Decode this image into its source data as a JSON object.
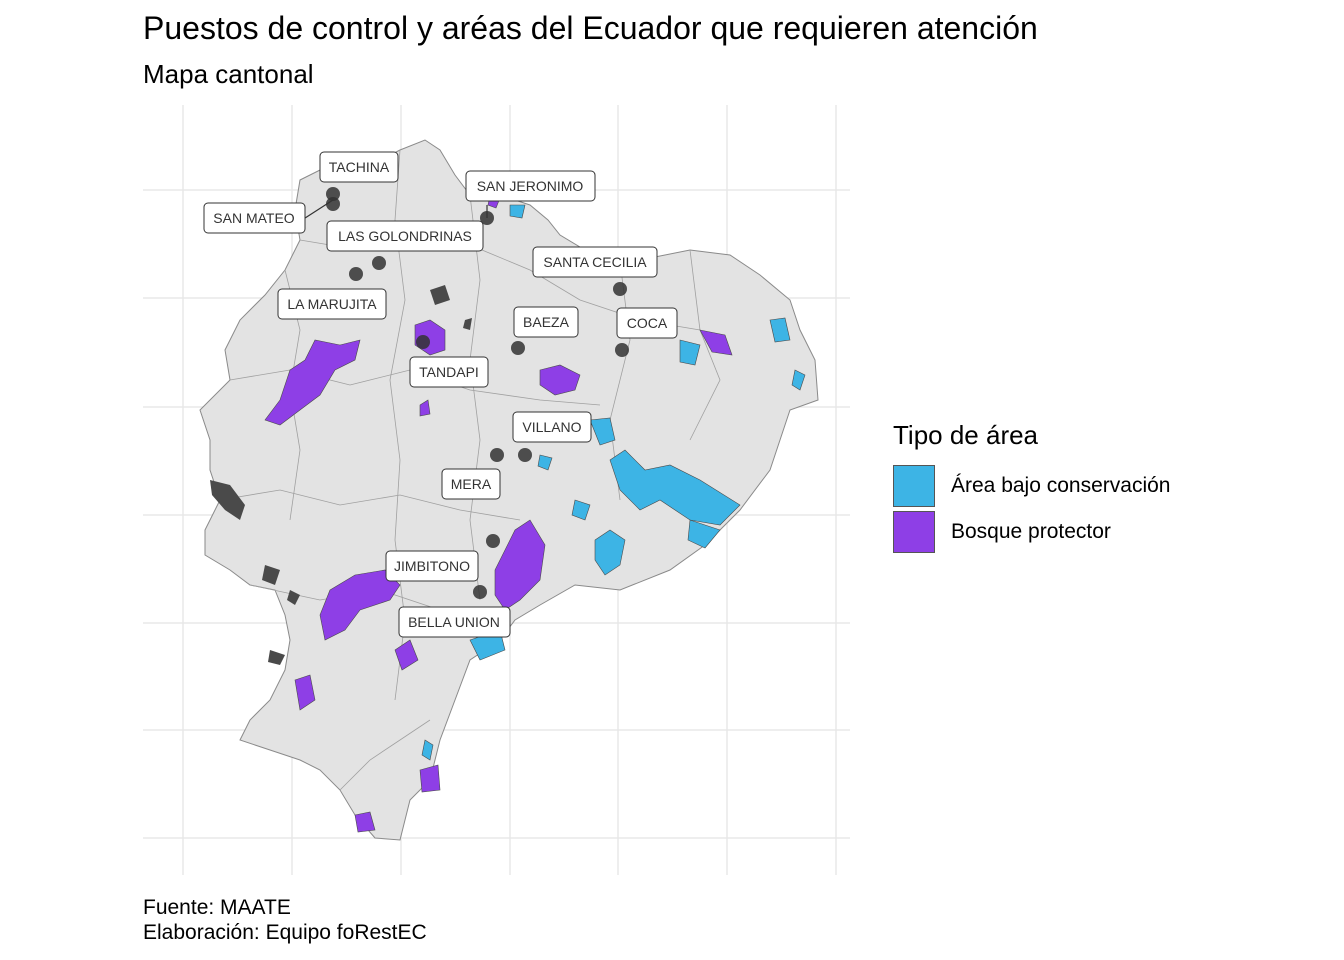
{
  "title": "Puestos de control y aréas del Ecuador que requieren atención",
  "subtitle": "Mapa cantonal",
  "legend": {
    "title": "Tipo de área",
    "items": [
      {
        "label": "Área bajo conservación",
        "color": "#3db4e5"
      },
      {
        "label": "Bosque protector",
        "color": "#8e3fe6"
      }
    ]
  },
  "caption": {
    "source": "Fuente: MAATE",
    "credits": "Elaboración: Equipo foRestEC"
  },
  "colors": {
    "land": "#e3e3e3",
    "land_border": "#8a8a8a",
    "grid": "#e8e8e8",
    "point": "#333333",
    "dark_patch": "#4a4a4a"
  },
  "checkpoints": [
    {
      "name": "TACHINA"
    },
    {
      "name": "SAN JERONIMO"
    },
    {
      "name": "SAN MATEO"
    },
    {
      "name": "LAS GOLONDRINAS"
    },
    {
      "name": "SANTA CECILIA"
    },
    {
      "name": "LA MARUJITA"
    },
    {
      "name": "BAEZA"
    },
    {
      "name": "COCA"
    },
    {
      "name": "TANDAPI"
    },
    {
      "name": "VILLANO"
    },
    {
      "name": "MERA"
    },
    {
      "name": "JIMBITONO"
    },
    {
      "name": "BELLA UNION"
    }
  ]
}
